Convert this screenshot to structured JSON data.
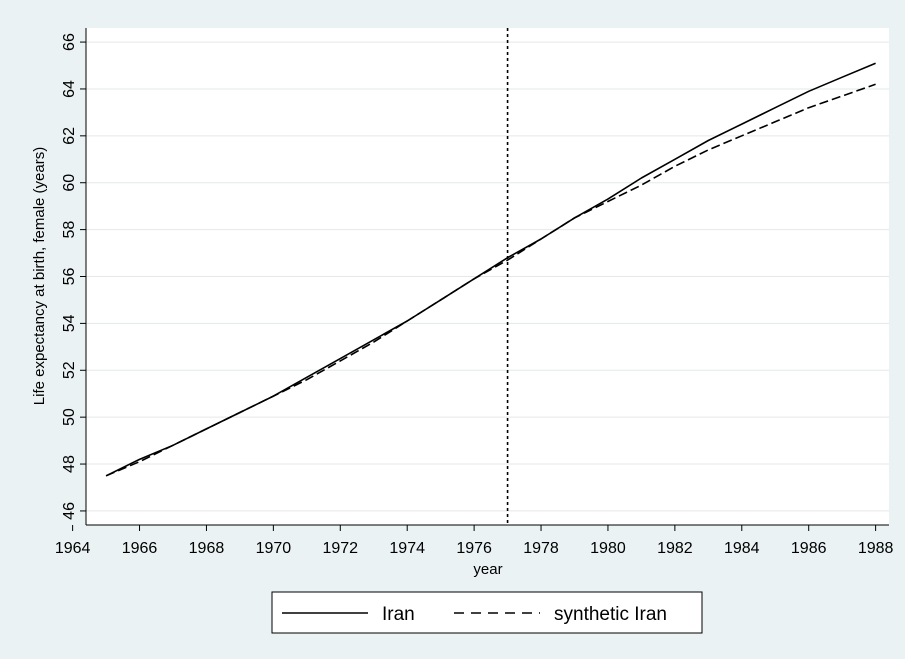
{
  "chart_data": {
    "type": "line",
    "title": "",
    "xlabel": "year",
    "ylabel": "Life expectancy at birth, female (years)",
    "xlim": [
      1964,
      1988
    ],
    "ylim": [
      46,
      66
    ],
    "xticks": [
      1964,
      1966,
      1968,
      1970,
      1972,
      1974,
      1976,
      1978,
      1980,
      1982,
      1984,
      1986,
      1988
    ],
    "yticks": [
      46,
      48,
      50,
      52,
      54,
      56,
      58,
      60,
      62,
      64,
      66
    ],
    "grid": "horizontal",
    "legend_position": "bottom",
    "vline": {
      "x": 1977,
      "style": "dotted"
    },
    "x": [
      1965,
      1966,
      1967,
      1968,
      1969,
      1970,
      1971,
      1972,
      1973,
      1974,
      1975,
      1976,
      1977,
      1978,
      1979,
      1980,
      1981,
      1982,
      1983,
      1984,
      1985,
      1986,
      1987,
      1988
    ],
    "series": [
      {
        "name": "Iran",
        "style": "solid",
        "values": [
          47.5,
          48.2,
          48.8,
          49.5,
          50.2,
          50.9,
          51.7,
          52.5,
          53.3,
          54.1,
          55.0,
          55.9,
          56.8,
          57.6,
          58.5,
          59.3,
          60.2,
          61.0,
          61.8,
          62.5,
          63.2,
          63.9,
          64.5,
          65.1
        ]
      },
      {
        "name": "synthetic Iran",
        "style": "dashed",
        "values": [
          47.5,
          48.1,
          48.8,
          49.5,
          50.2,
          50.9,
          51.6,
          52.4,
          53.2,
          54.1,
          55.0,
          55.9,
          56.7,
          57.6,
          58.5,
          59.2,
          59.9,
          60.7,
          61.4,
          62.0,
          62.6,
          63.2,
          63.7,
          64.2
        ]
      }
    ]
  }
}
